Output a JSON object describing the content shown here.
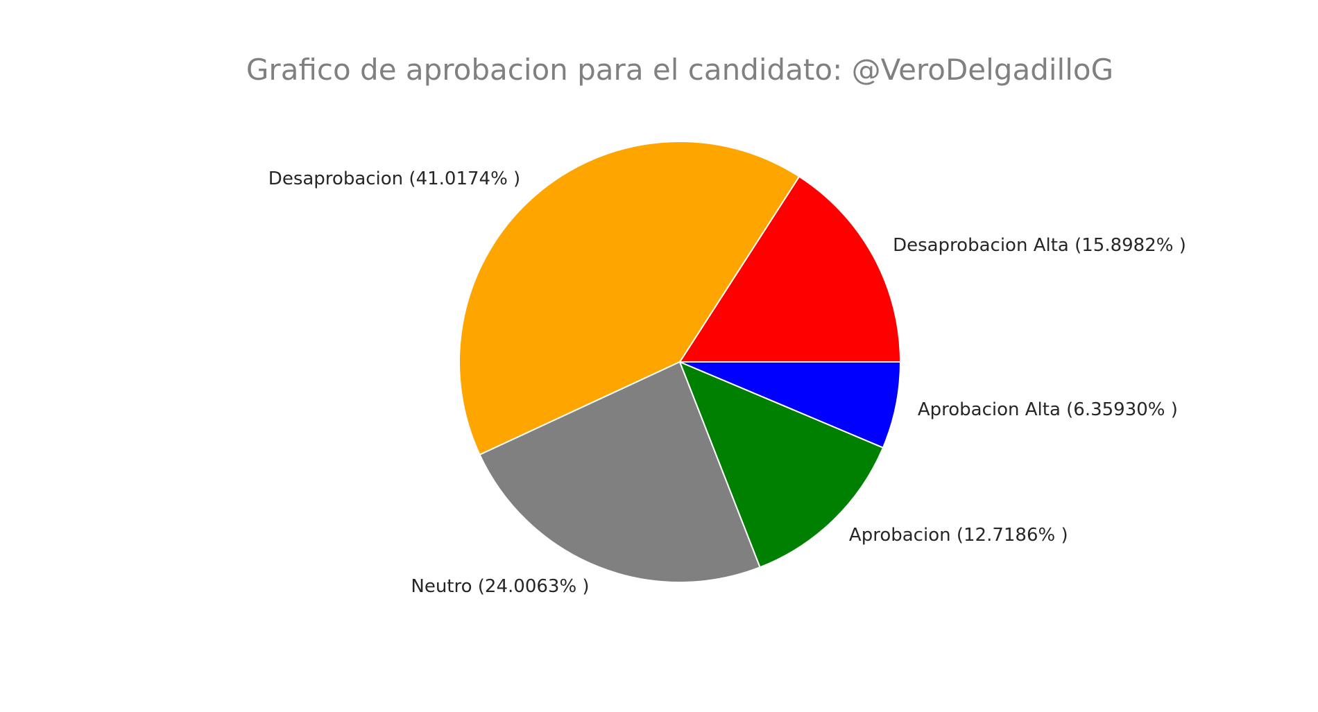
{
  "chart_data": {
    "type": "pie",
    "title": "Grafico de aprobacion para el candidato: @VeroDelgadilloG",
    "start_angle_deg": 0,
    "direction": "counterclockwise",
    "legend": "none",
    "slices": [
      {
        "name": "Desaprobacion Alta",
        "value": 15.8982,
        "label": "Desaprobacion Alta (15.8982% )",
        "color": "#ff0000"
      },
      {
        "name": "Desaprobacion",
        "value": 41.0174,
        "label": "Desaprobacion (41.0174% )",
        "color": "#ffa500"
      },
      {
        "name": "Neutro",
        "value": 24.0063,
        "label": "Neutro (24.0063% )",
        "color": "#808080"
      },
      {
        "name": "Aprobacion",
        "value": 12.7186,
        "label": "Aprobacion (12.7186% )",
        "color": "#008000"
      },
      {
        "name": "Aprobacion Alta",
        "value": 6.3593,
        "label": "Aprobacion Alta (6.35930% )",
        "color": "#0000ff"
      }
    ]
  }
}
